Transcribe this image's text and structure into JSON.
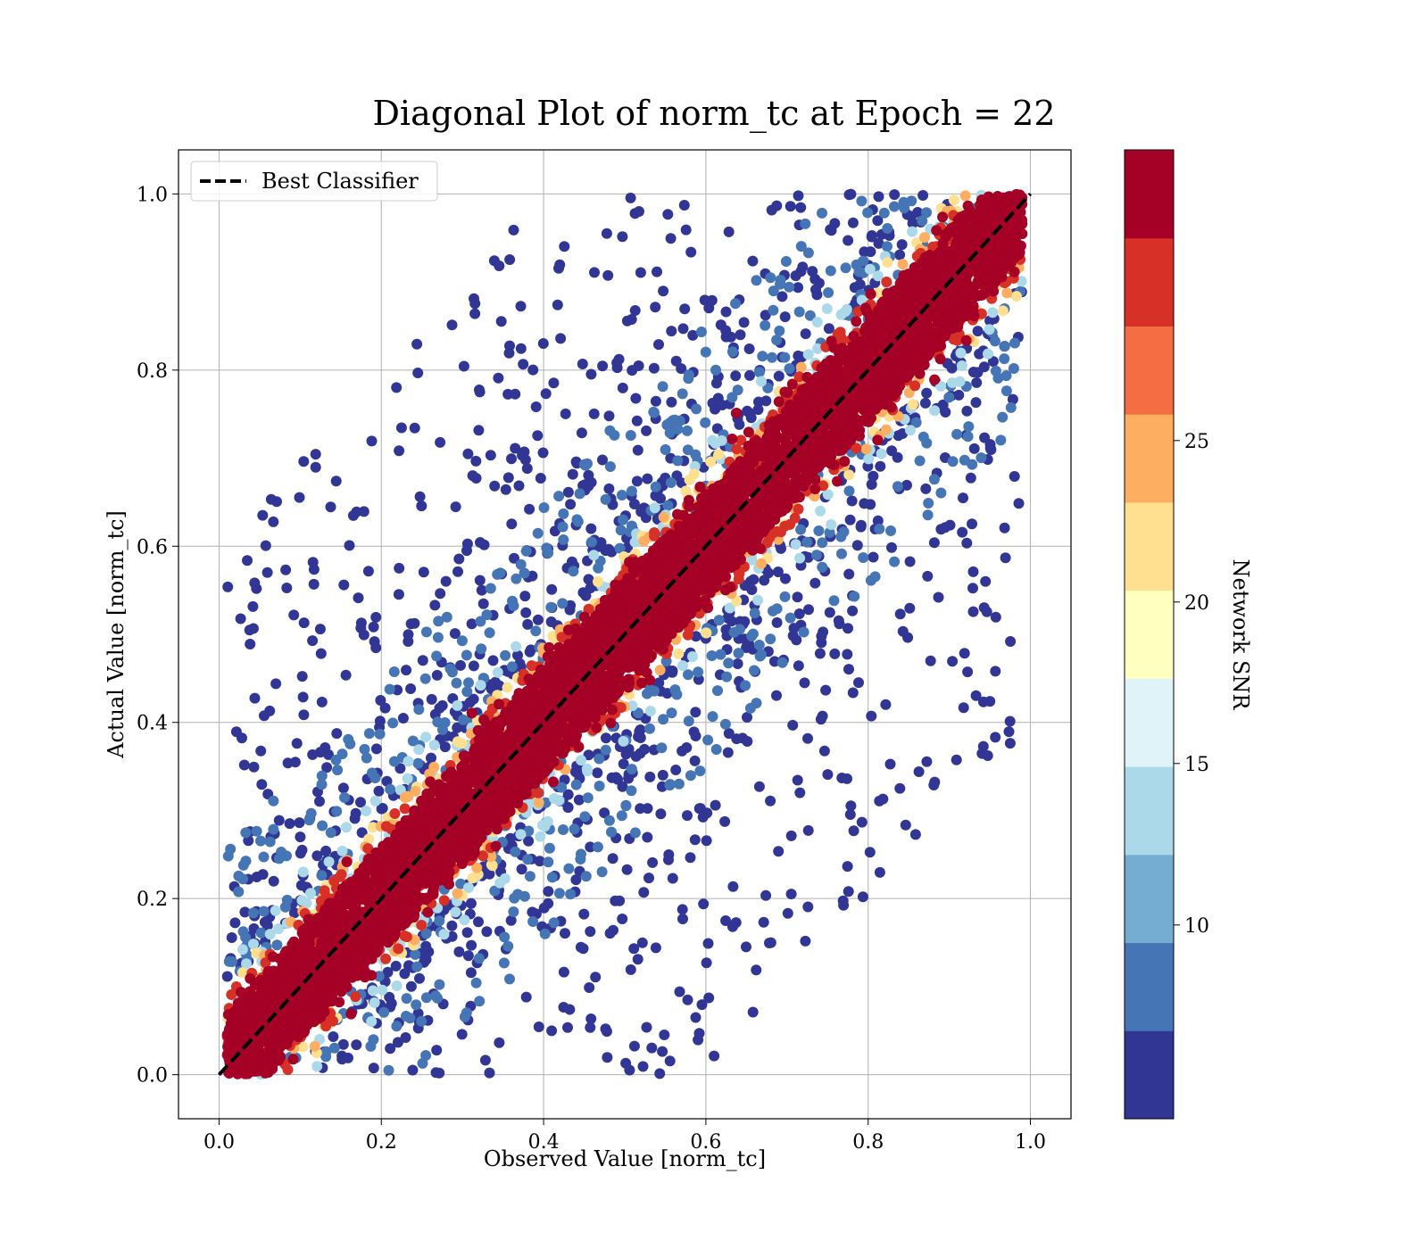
{
  "chart_data": {
    "type": "scatter",
    "title": "Diagonal Plot of norm_tc at Epoch = 22",
    "xlabel": "Observed Value [norm_tc]",
    "ylabel": "Actual Value [norm_tc]",
    "xlim": [
      -0.05,
      1.05
    ],
    "ylim": [
      -0.05,
      1.05
    ],
    "xticks": [
      "0.0",
      "0.2",
      "0.4",
      "0.6",
      "0.8",
      "1.0"
    ],
    "yticks": [
      "0.0",
      "0.2",
      "0.4",
      "0.6",
      "0.8",
      "1.0"
    ],
    "grid": true,
    "legend": {
      "location": "upper-left",
      "entries": [
        {
          "label": "Best Classifier",
          "style": "black dashed line"
        }
      ]
    },
    "reference_line": {
      "name": "Best Classifier",
      "x": [
        0.0,
        1.0
      ],
      "y": [
        0.0,
        1.0
      ],
      "color": "#000000",
      "style": "dashed"
    },
    "colorbar": {
      "label": "Network SNR",
      "range": [
        4,
        34
      ],
      "tick_values": [
        10,
        15,
        20,
        25
      ],
      "tick_labels": [
        "10",
        "15",
        "20",
        "25"
      ],
      "colormap": "RdYlBu_r",
      "colors": [
        "#313695",
        "#4575b4",
        "#74add1",
        "#abd9e9",
        "#e0f3f8",
        "#ffffbf",
        "#fee090",
        "#fdae61",
        "#f46d43",
        "#d73027",
        "#a50026"
      ]
    },
    "scatter_bands": [
      {
        "snr": 30,
        "half_width_y": 0.06,
        "color": "#a50026"
      },
      {
        "snr": 25,
        "half_width_y": 0.08,
        "color": "#d73027"
      },
      {
        "snr": 22,
        "half_width_y": 0.09,
        "color": "#fdae61"
      },
      {
        "snr": 18,
        "half_width_y": 0.1,
        "color": "#fee090"
      },
      {
        "snr": 13,
        "half_width_y": 0.13,
        "color": "#abd9e9"
      },
      {
        "snr": 10,
        "half_width_y": 0.25,
        "color": "#4575b4"
      },
      {
        "snr": 6,
        "half_width_y": 0.85,
        "color": "#313695"
      }
    ],
    "x_range_points": [
      0.01,
      0.99
    ],
    "y_range_points": [
      0.0,
      1.0
    ]
  }
}
